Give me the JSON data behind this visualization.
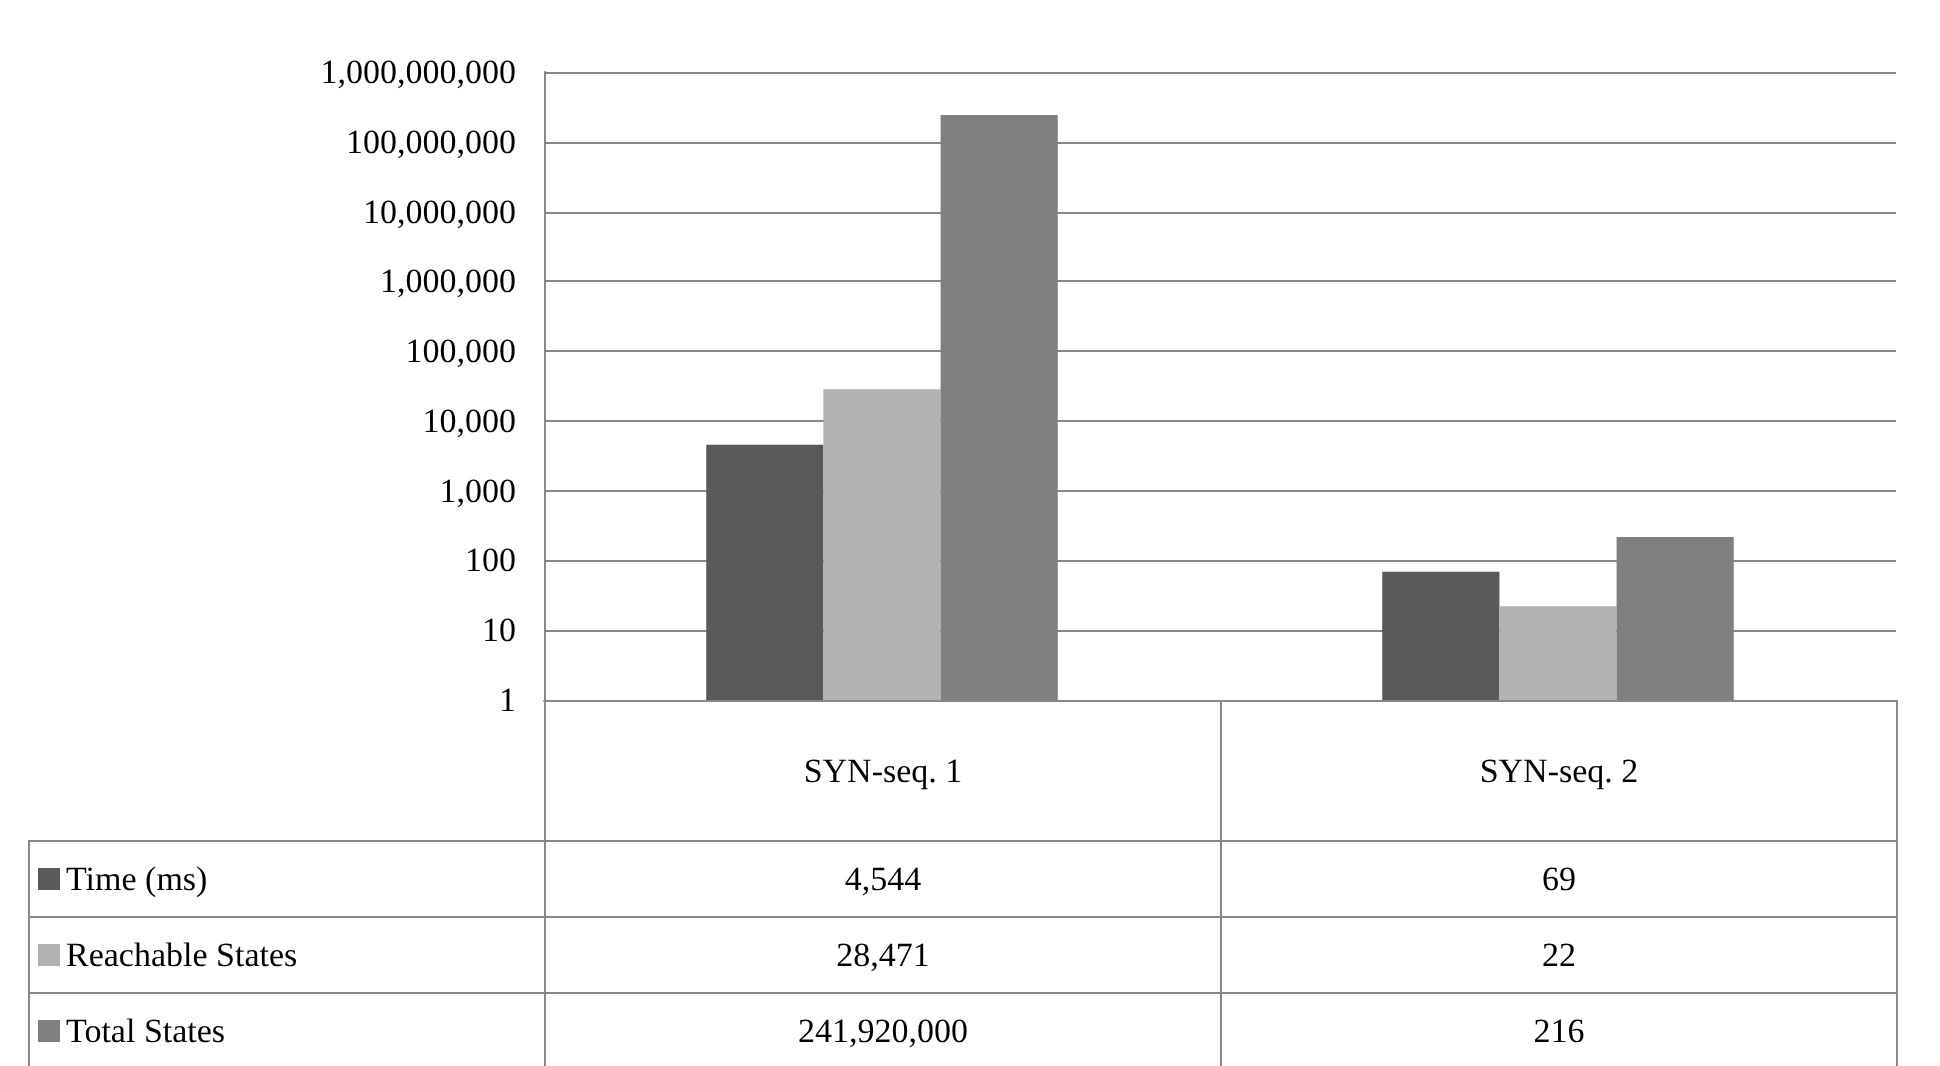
{
  "chart_data": {
    "type": "bar",
    "categories": [
      "SYN-seq. 1",
      "SYN-seq. 2"
    ],
    "series": [
      {
        "name": "Time (ms)",
        "color": "#595959",
        "values": [
          4544,
          69
        ],
        "value_labels": [
          "4,544",
          "69"
        ]
      },
      {
        "name": "Reachable States",
        "color": "#b2b2b2",
        "values": [
          28471,
          22
        ],
        "value_labels": [
          "28,471",
          "22"
        ]
      },
      {
        "name": "Total States",
        "color": "#7f7f7f",
        "values": [
          241920000,
          216
        ],
        "value_labels": [
          "241,920,000",
          "216"
        ]
      }
    ],
    "log": true,
    "ylim": [
      1,
      1000000000
    ],
    "yticks": [
      1,
      10,
      100,
      {
        "value": 1000,
        "label": "1,000"
      },
      {
        "value": 10000,
        "label": "10,000"
      },
      {
        "value": 100000,
        "label": "100,000"
      },
      {
        "value": 1000000,
        "label": "1,000,000"
      },
      {
        "value": 10000000,
        "label": "10,000,000"
      },
      {
        "value": 100000000,
        "label": "100,000,000"
      },
      {
        "value": 1000000000,
        "label": "1,000,000,000"
      }
    ],
    "grid": "y",
    "legend": "bottom"
  }
}
